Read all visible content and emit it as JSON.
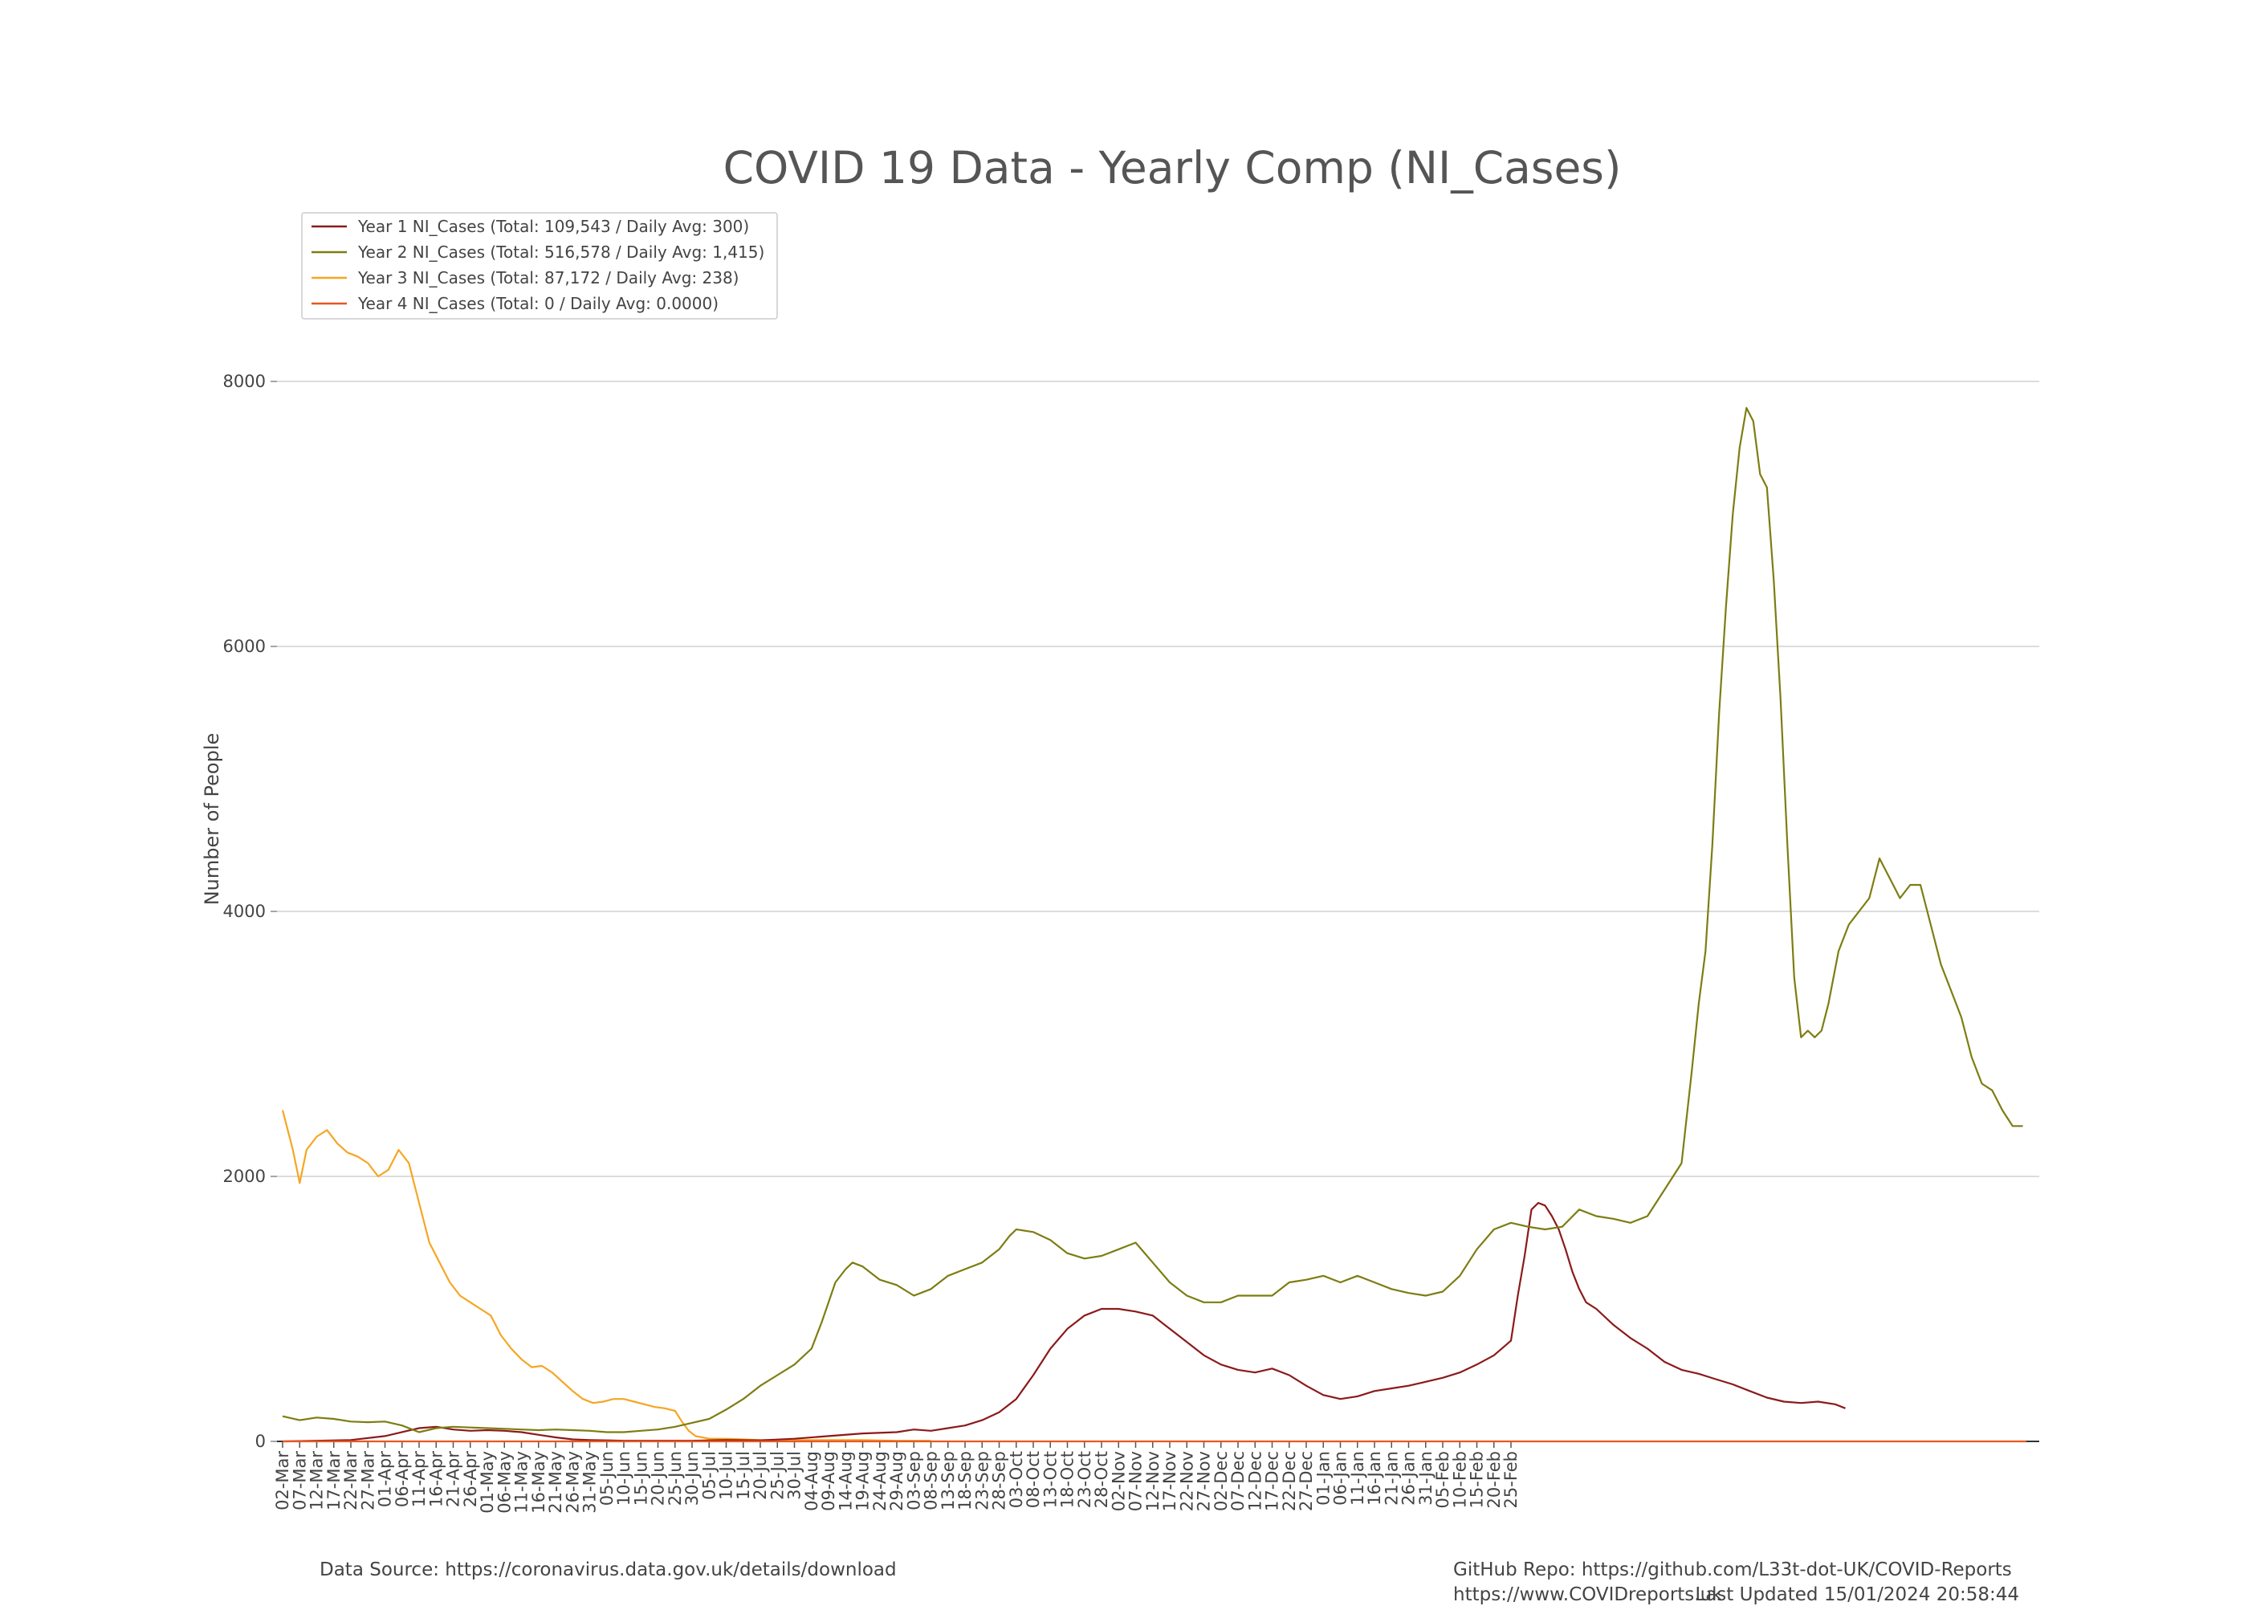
{
  "chart_data": {
    "type": "line",
    "title": "COVID 19 Data - Yearly Comp (NI_Cases)",
    "xlabel": "",
    "ylabel": "Number of People",
    "ylim": [
      0,
      8800
    ],
    "yticks": [
      0,
      2000,
      4000,
      6000,
      8000
    ],
    "grid": true,
    "legend_position": "top-left",
    "x_tick_labels": [
      "02-Mar",
      "07-Mar",
      "12-Mar",
      "17-Mar",
      "22-Mar",
      "27-Mar",
      "01-Apr",
      "06-Apr",
      "11-Apr",
      "16-Apr",
      "21-Apr",
      "26-Apr",
      "01-May",
      "06-May",
      "11-May",
      "16-May",
      "21-May",
      "26-May",
      "31-May",
      "05-Jun",
      "10-Jun",
      "15-Jun",
      "20-Jun",
      "25-Jun",
      "30-Jun",
      "05-Jul",
      "10-Jul",
      "15-Jul",
      "20-Jul",
      "25-Jul",
      "30-Jul",
      "04-Aug",
      "09-Aug",
      "14-Aug",
      "19-Aug",
      "24-Aug",
      "29-Aug",
      "03-Sep",
      "08-Sep",
      "13-Sep",
      "18-Sep",
      "23-Sep",
      "28-Sep",
      "03-Oct",
      "08-Oct",
      "13-Oct",
      "18-Oct",
      "23-Oct",
      "28-Oct",
      "02-Nov",
      "07-Nov",
      "12-Nov",
      "17-Nov",
      "22-Nov",
      "27-Nov",
      "02-Dec",
      "07-Dec",
      "12-Dec",
      "17-Dec",
      "22-Dec",
      "27-Dec",
      "01-Jan",
      "06-Jan",
      "11-Jan",
      "16-Jan",
      "21-Jan",
      "26-Jan",
      "31-Jan",
      "05-Feb",
      "10-Feb",
      "15-Feb",
      "20-Feb",
      "25-Feb"
    ],
    "series": [
      {
        "name": "Year 1 NI_Cases (Total: 109,543 / Daily Avg: 300)",
        "color": "#8b1a1a",
        "points": [
          [
            0,
            0
          ],
          [
            10,
            5
          ],
          [
            20,
            10
          ],
          [
            30,
            40
          ],
          [
            40,
            100
          ],
          [
            45,
            110
          ],
          [
            50,
            90
          ],
          [
            55,
            80
          ],
          [
            60,
            85
          ],
          [
            65,
            80
          ],
          [
            70,
            70
          ],
          [
            75,
            50
          ],
          [
            80,
            30
          ],
          [
            85,
            15
          ],
          [
            90,
            10
          ],
          [
            100,
            5
          ],
          [
            120,
            5
          ],
          [
            130,
            10
          ],
          [
            140,
            8
          ],
          [
            150,
            20
          ],
          [
            160,
            40
          ],
          [
            170,
            60
          ],
          [
            180,
            70
          ],
          [
            185,
            90
          ],
          [
            190,
            80
          ],
          [
            195,
            100
          ],
          [
            200,
            120
          ],
          [
            205,
            160
          ],
          [
            210,
            220
          ],
          [
            215,
            320
          ],
          [
            220,
            500
          ],
          [
            225,
            700
          ],
          [
            230,
            850
          ],
          [
            235,
            950
          ],
          [
            240,
            1000
          ],
          [
            245,
            1000
          ],
          [
            250,
            980
          ],
          [
            255,
            950
          ],
          [
            260,
            850
          ],
          [
            265,
            750
          ],
          [
            270,
            650
          ],
          [
            275,
            580
          ],
          [
            280,
            540
          ],
          [
            285,
            520
          ],
          [
            290,
            550
          ],
          [
            295,
            500
          ],
          [
            300,
            420
          ],
          [
            305,
            350
          ],
          [
            310,
            320
          ],
          [
            315,
            340
          ],
          [
            320,
            380
          ],
          [
            325,
            400
          ],
          [
            330,
            420
          ],
          [
            335,
            450
          ],
          [
            340,
            480
          ],
          [
            345,
            520
          ],
          [
            350,
            580
          ],
          [
            355,
            650
          ],
          [
            360,
            760
          ],
          [
            362,
            1100
          ],
          [
            364,
            1400
          ],
          [
            366,
            1750
          ],
          [
            368,
            1800
          ],
          [
            370,
            1780
          ],
          [
            372,
            1700
          ],
          [
            374,
            1600
          ],
          [
            376,
            1450
          ],
          [
            378,
            1280
          ],
          [
            380,
            1150
          ],
          [
            382,
            1050
          ],
          [
            385,
            1000
          ],
          [
            390,
            880
          ],
          [
            395,
            780
          ],
          [
            400,
            700
          ],
          [
            405,
            600
          ],
          [
            410,
            540
          ],
          [
            415,
            510
          ],
          [
            420,
            470
          ],
          [
            425,
            430
          ],
          [
            430,
            380
          ],
          [
            435,
            330
          ],
          [
            440,
            300
          ],
          [
            445,
            290
          ],
          [
            450,
            300
          ],
          [
            455,
            280
          ],
          [
            458,
            250
          ]
        ]
      },
      {
        "name": "Year 2 NI_Cases (Total: 516,578 / Daily Avg: 1,415)",
        "color": "#7d7d12",
        "points": [
          [
            0,
            190
          ],
          [
            5,
            160
          ],
          [
            10,
            180
          ],
          [
            15,
            170
          ],
          [
            20,
            150
          ],
          [
            25,
            145
          ],
          [
            30,
            150
          ],
          [
            35,
            120
          ],
          [
            40,
            70
          ],
          [
            45,
            100
          ],
          [
            50,
            110
          ],
          [
            55,
            105
          ],
          [
            60,
            100
          ],
          [
            65,
            95
          ],
          [
            70,
            90
          ],
          [
            75,
            85
          ],
          [
            80,
            90
          ],
          [
            85,
            85
          ],
          [
            90,
            80
          ],
          [
            95,
            70
          ],
          [
            100,
            70
          ],
          [
            105,
            80
          ],
          [
            110,
            90
          ],
          [
            115,
            110
          ],
          [
            120,
            140
          ],
          [
            125,
            170
          ],
          [
            130,
            240
          ],
          [
            135,
            320
          ],
          [
            140,
            420
          ],
          [
            145,
            500
          ],
          [
            150,
            580
          ],
          [
            155,
            700
          ],
          [
            158,
            900
          ],
          [
            160,
            1050
          ],
          [
            162,
            1200
          ],
          [
            165,
            1300
          ],
          [
            167,
            1350
          ],
          [
            170,
            1320
          ],
          [
            175,
            1220
          ],
          [
            180,
            1180
          ],
          [
            185,
            1100
          ],
          [
            190,
            1150
          ],
          [
            195,
            1250
          ],
          [
            200,
            1300
          ],
          [
            205,
            1350
          ],
          [
            210,
            1450
          ],
          [
            213,
            1550
          ],
          [
            215,
            1600
          ],
          [
            220,
            1580
          ],
          [
            225,
            1520
          ],
          [
            230,
            1420
          ],
          [
            235,
            1380
          ],
          [
            240,
            1400
          ],
          [
            245,
            1450
          ],
          [
            250,
            1500
          ],
          [
            255,
            1350
          ],
          [
            260,
            1200
          ],
          [
            265,
            1100
          ],
          [
            270,
            1050
          ],
          [
            275,
            1050
          ],
          [
            280,
            1100
          ],
          [
            285,
            1100
          ],
          [
            290,
            1100
          ],
          [
            295,
            1200
          ],
          [
            300,
            1220
          ],
          [
            305,
            1250
          ],
          [
            310,
            1200
          ],
          [
            315,
            1250
          ],
          [
            320,
            1200
          ],
          [
            325,
            1150
          ],
          [
            330,
            1120
          ],
          [
            335,
            1100
          ],
          [
            340,
            1130
          ],
          [
            345,
            1250
          ],
          [
            350,
            1450
          ],
          [
            355,
            1600
          ],
          [
            360,
            1650
          ],
          [
            365,
            1620
          ],
          [
            370,
            1600
          ],
          [
            375,
            1620
          ],
          [
            380,
            1750
          ],
          [
            385,
            1700
          ],
          [
            390,
            1680
          ],
          [
            395,
            1650
          ],
          [
            400,
            1700
          ],
          [
            405,
            1900
          ],
          [
            410,
            2100
          ],
          [
            413,
            2800
          ],
          [
            415,
            3300
          ],
          [
            417,
            3700
          ],
          [
            419,
            4500
          ],
          [
            421,
            5500
          ],
          [
            423,
            6300
          ],
          [
            425,
            7000
          ],
          [
            427,
            7500
          ],
          [
            429,
            7800
          ],
          [
            431,
            7700
          ],
          [
            433,
            7300
          ],
          [
            435,
            7200
          ],
          [
            437,
            6500
          ],
          [
            439,
            5600
          ],
          [
            441,
            4500
          ],
          [
            443,
            3500
          ],
          [
            445,
            3050
          ],
          [
            447,
            3100
          ],
          [
            449,
            3050
          ],
          [
            451,
            3100
          ],
          [
            453,
            3300
          ],
          [
            456,
            3700
          ],
          [
            459,
            3900
          ],
          [
            462,
            4000
          ],
          [
            465,
            4100
          ],
          [
            468,
            4400
          ],
          [
            471,
            4250
          ],
          [
            474,
            4100
          ],
          [
            477,
            4200
          ],
          [
            480,
            4200
          ],
          [
            483,
            3900
          ],
          [
            486,
            3600
          ],
          [
            489,
            3400
          ],
          [
            492,
            3200
          ],
          [
            495,
            2900
          ],
          [
            498,
            2700
          ],
          [
            501,
            2650
          ],
          [
            504,
            2500
          ],
          [
            507,
            2380
          ],
          [
            510,
            2380
          ]
        ]
      },
      {
        "name": "Year 3 NI_Cases (Total: 87,172 / Daily Avg: 238)",
        "color": "#f5a623",
        "points": [
          [
            0,
            2500
          ],
          [
            3,
            2200
          ],
          [
            5,
            1950
          ],
          [
            7,
            2200
          ],
          [
            10,
            2300
          ],
          [
            13,
            2350
          ],
          [
            16,
            2250
          ],
          [
            19,
            2180
          ],
          [
            22,
            2150
          ],
          [
            25,
            2100
          ],
          [
            28,
            2000
          ],
          [
            31,
            2050
          ],
          [
            34,
            2200
          ],
          [
            37,
            2100
          ],
          [
            40,
            1800
          ],
          [
            43,
            1500
          ],
          [
            46,
            1350
          ],
          [
            49,
            1200
          ],
          [
            52,
            1100
          ],
          [
            55,
            1050
          ],
          [
            58,
            1000
          ],
          [
            61,
            950
          ],
          [
            64,
            800
          ],
          [
            67,
            700
          ],
          [
            70,
            620
          ],
          [
            73,
            560
          ],
          [
            76,
            570
          ],
          [
            79,
            520
          ],
          [
            82,
            450
          ],
          [
            85,
            380
          ],
          [
            88,
            320
          ],
          [
            91,
            290
          ],
          [
            94,
            300
          ],
          [
            97,
            320
          ],
          [
            100,
            320
          ],
          [
            103,
            300
          ],
          [
            106,
            280
          ],
          [
            109,
            260
          ],
          [
            112,
            250
          ],
          [
            115,
            230
          ],
          [
            117,
            150
          ],
          [
            119,
            80
          ],
          [
            121,
            40
          ],
          [
            123,
            30
          ],
          [
            125,
            20
          ],
          [
            130,
            20
          ],
          [
            135,
            15
          ],
          [
            140,
            10
          ],
          [
            150,
            10
          ],
          [
            160,
            10
          ],
          [
            170,
            10
          ],
          [
            180,
            5
          ],
          [
            190,
            5
          ]
        ]
      },
      {
        "name": "Year 4 NI_Cases (Total: 0 / Daily Avg: 0.0000)",
        "color": "#e8571f",
        "points": [
          [
            0,
            0
          ],
          [
            511,
            0
          ]
        ]
      }
    ]
  },
  "footer": {
    "data_source": "Data Source: https://coronavirus.data.gov.uk/details/download",
    "github_repo": "GitHub Repo: https://github.com/L33t-dot-UK/COVID-Reports",
    "website": "https://www.COVIDreports.uk",
    "last_updated": "Last Updated 15/01/2024 20:58:44"
  }
}
